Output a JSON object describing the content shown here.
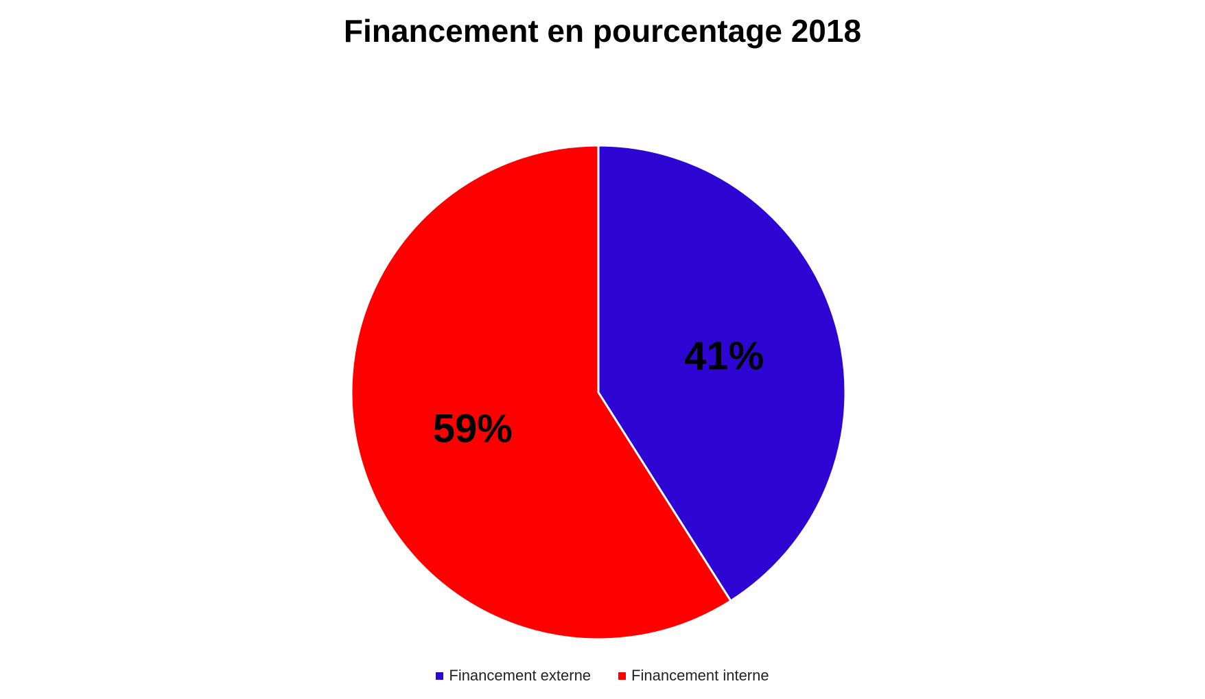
{
  "chart_data": {
    "type": "pie",
    "title": "Financement en pourcentage 2018",
    "slices": [
      {
        "name": "Financement externe",
        "value": 41,
        "label": "41%",
        "color": "#2E06D3"
      },
      {
        "name": "Financement interne",
        "value": 59,
        "label": "59%",
        "color": "#FF0000"
      }
    ],
    "start_angle": "12 o'clock",
    "direction": "clockwise",
    "legend_position": "bottom",
    "slice_border_color": "#FFFFFF"
  }
}
